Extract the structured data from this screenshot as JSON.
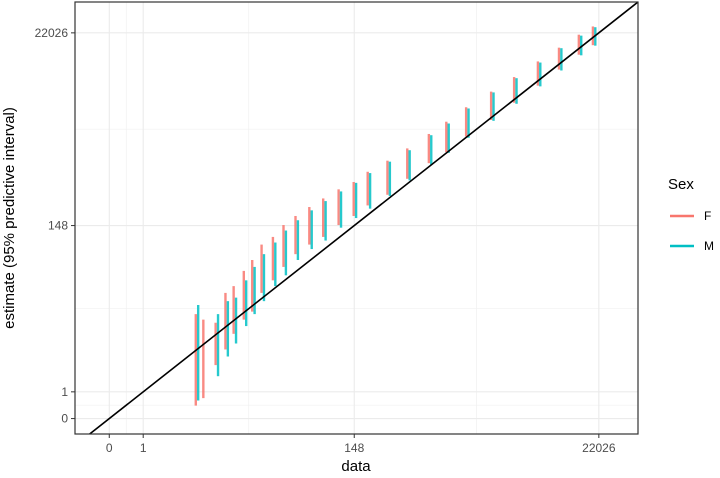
{
  "chart_data": {
    "type": "scatter",
    "xlabel": "data",
    "ylabel": "estimate (95% predictive interval)",
    "x_scale": "log(x+1)",
    "y_scale": "log(y+1)",
    "xlim_log": [
      -0.7,
      10.8
    ],
    "ylim_log": [
      -0.4,
      10.8
    ],
    "x_ticks": [
      {
        "label": "0",
        "value": 0
      },
      {
        "label": "1",
        "value": 1
      },
      {
        "label": "148",
        "value": 148
      },
      {
        "label": "22026",
        "value": 22026
      }
    ],
    "y_ticks": [
      {
        "label": "0",
        "value": 0
      },
      {
        "label": "1",
        "value": 1
      },
      {
        "label": "148",
        "value": 148
      },
      {
        "label": "22026",
        "value": 22026
      }
    ],
    "grid": true,
    "reference_line": "y = x",
    "legend": {
      "title": "Sex",
      "position": "right",
      "entries": [
        {
          "label": "F",
          "color": "#F8766D"
        },
        {
          "label": "M",
          "color": "#00BFC4"
        }
      ]
    },
    "series": [
      {
        "name": "F",
        "color": "#F8766D",
        "intervals": [
          {
            "x": 5,
            "lo": 0.4,
            "hi": 14
          },
          {
            "x": 6,
            "lo": 0.7,
            "hi": 12
          },
          {
            "x": 8,
            "lo": 3,
            "hi": 11
          },
          {
            "x": 10,
            "lo": 5,
            "hi": 25
          },
          {
            "x": 12,
            "lo": 8,
            "hi": 30
          },
          {
            "x": 15,
            "lo": 12,
            "hi": 45
          },
          {
            "x": 18,
            "lo": 15,
            "hi": 60
          },
          {
            "x": 22,
            "lo": 25,
            "hi": 90
          },
          {
            "x": 28,
            "lo": 35,
            "hi": 110
          },
          {
            "x": 35,
            "lo": 50,
            "hi": 150
          },
          {
            "x": 45,
            "lo": 70,
            "hi": 190
          },
          {
            "x": 60,
            "lo": 90,
            "hi": 240
          },
          {
            "x": 80,
            "lo": 110,
            "hi": 300
          },
          {
            "x": 110,
            "lo": 150,
            "hi": 380
          },
          {
            "x": 150,
            "lo": 190,
            "hi": 460
          },
          {
            "x": 200,
            "lo": 250,
            "hi": 600
          },
          {
            "x": 300,
            "lo": 330,
            "hi": 800
          },
          {
            "x": 450,
            "lo": 500,
            "hi": 1100
          },
          {
            "x": 700,
            "lo": 750,
            "hi": 1600
          },
          {
            "x": 1000,
            "lo": 1000,
            "hi": 2200
          },
          {
            "x": 1500,
            "lo": 1500,
            "hi": 3200
          },
          {
            "x": 2500,
            "lo": 2300,
            "hi": 4800
          },
          {
            "x": 4000,
            "lo": 3600,
            "hi": 7000
          },
          {
            "x": 6500,
            "lo": 5600,
            "hi": 10500
          },
          {
            "x": 10000,
            "lo": 8500,
            "hi": 15000
          },
          {
            "x": 15000,
            "lo": 12500,
            "hi": 21000
          },
          {
            "x": 20000,
            "lo": 16000,
            "hi": 26000
          }
        ]
      },
      {
        "name": "M",
        "color": "#00BFC4",
        "intervals": [
          {
            "x": 5,
            "lo": 0.6,
            "hi": 18
          },
          {
            "x": 8,
            "lo": 2,
            "hi": 14
          },
          {
            "x": 10,
            "lo": 4,
            "hi": 20
          },
          {
            "x": 12,
            "lo": 6,
            "hi": 22
          },
          {
            "x": 15,
            "lo": 10,
            "hi": 35
          },
          {
            "x": 18,
            "lo": 14,
            "hi": 50
          },
          {
            "x": 22,
            "lo": 20,
            "hi": 70
          },
          {
            "x": 28,
            "lo": 30,
            "hi": 95
          },
          {
            "x": 35,
            "lo": 40,
            "hi": 130
          },
          {
            "x": 45,
            "lo": 60,
            "hi": 170
          },
          {
            "x": 60,
            "lo": 80,
            "hi": 220
          },
          {
            "x": 80,
            "lo": 100,
            "hi": 280
          },
          {
            "x": 110,
            "lo": 140,
            "hi": 360
          },
          {
            "x": 150,
            "lo": 180,
            "hi": 450
          },
          {
            "x": 200,
            "lo": 230,
            "hi": 580
          },
          {
            "x": 300,
            "lo": 320,
            "hi": 780
          },
          {
            "x": 450,
            "lo": 480,
            "hi": 1050
          },
          {
            "x": 700,
            "lo": 720,
            "hi": 1550
          },
          {
            "x": 1000,
            "lo": 980,
            "hi": 2100
          },
          {
            "x": 1500,
            "lo": 1450,
            "hi": 3100
          },
          {
            "x": 2500,
            "lo": 2250,
            "hi": 4700
          },
          {
            "x": 4000,
            "lo": 3500,
            "hi": 6800
          },
          {
            "x": 6500,
            "lo": 5500,
            "hi": 10200
          },
          {
            "x": 10000,
            "lo": 8300,
            "hi": 14800
          },
          {
            "x": 15000,
            "lo": 12300,
            "hi": 20500
          },
          {
            "x": 20000,
            "lo": 15800,
            "hi": 25500
          }
        ]
      }
    ]
  }
}
